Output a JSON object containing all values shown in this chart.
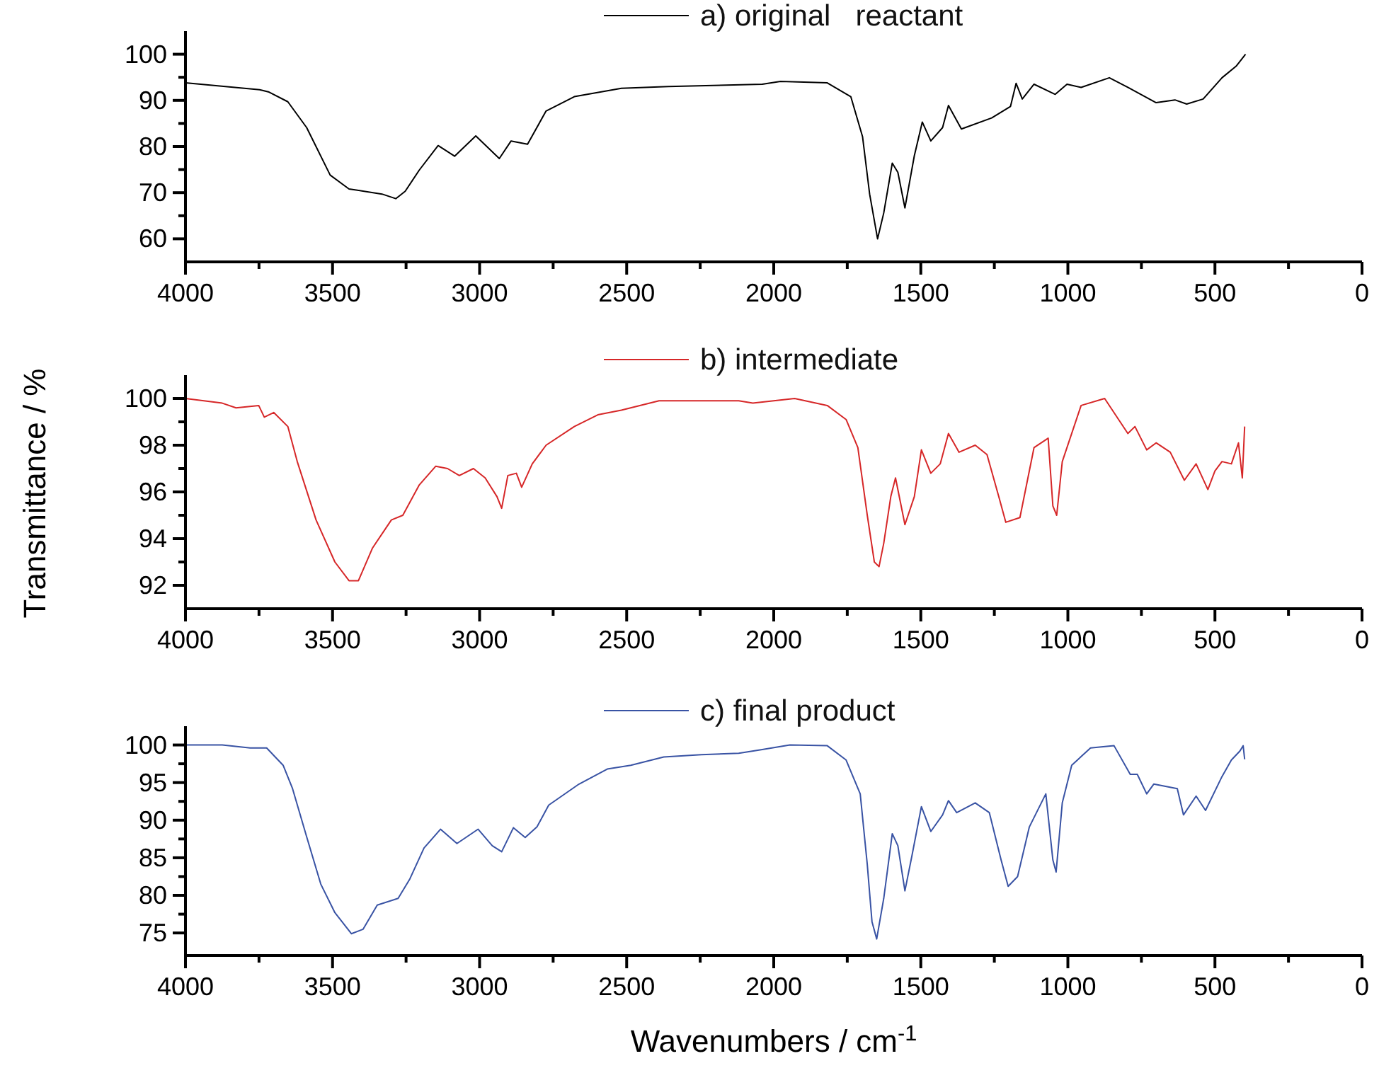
{
  "chart_data": [
    {
      "type": "line",
      "legend": "top",
      "xlim": [
        4000,
        0
      ],
      "ylim": [
        55,
        105
      ],
      "xticks": [
        4000,
        {
          "value": 3750,
          "label": null
        },
        3500,
        {
          "value": 3250,
          "label": null
        },
        3000,
        {
          "value": 2750,
          "label": null
        },
        2500,
        {
          "value": 2250,
          "label": null
        },
        2000,
        {
          "value": 1750,
          "label": null
        },
        1500,
        {
          "value": 1250,
          "label": null
        },
        1000,
        {
          "value": 750,
          "label": null
        },
        500,
        {
          "value": 250,
          "label": null
        },
        0
      ],
      "yticks": [
        60,
        {
          "value": 65,
          "label": null
        },
        70,
        {
          "value": 75,
          "label": null
        },
        80,
        {
          "value": 85,
          "label": null
        },
        90,
        {
          "value": 95,
          "label": null
        },
        100
      ],
      "series": [
        {
          "name": "a) original   reactant",
          "color": "#000000",
          "x": [
            4000,
            3748,
            3716,
            3652,
            3588,
            3508,
            3444,
            3332,
            3285,
            3253,
            3205,
            3141,
            3085,
            3013,
            2933,
            2893,
            2837,
            2774,
            2678,
            2518,
            2358,
            2039,
            1977,
            1818,
            1738,
            1698,
            1674,
            1647,
            1626,
            1597,
            1578,
            1554,
            1522,
            1495,
            1466,
            1426,
            1406,
            1362,
            1259,
            1195,
            1176,
            1155,
            1115,
            1043,
            1003,
            955,
            859,
            795,
            700,
            636,
            596,
            540,
            476,
            428,
            396
          ],
          "values": [
            93.8,
            92.3,
            91.8,
            89.7,
            84.1,
            73.8,
            70.8,
            69.7,
            68.7,
            70.3,
            74.9,
            80.2,
            77.9,
            82.3,
            77.4,
            81.2,
            80.5,
            87.7,
            90.8,
            92.6,
            93.0,
            93.5,
            94.1,
            93.8,
            90.8,
            82.1,
            69.7,
            60.0,
            65.6,
            76.4,
            74.4,
            66.7,
            78.0,
            85.3,
            81.2,
            84.1,
            88.9,
            83.8,
            86.2,
            88.7,
            93.7,
            90.3,
            93.5,
            91.3,
            93.5,
            92.8,
            94.9,
            92.8,
            89.5,
            90.1,
            89.2,
            90.3,
            94.9,
            97.4,
            100.0
          ]
        }
      ]
    },
    {
      "type": "line",
      "legend": "top",
      "ylabel": "Transmittance / %",
      "xlim": [
        4000,
        0
      ],
      "ylim": [
        91,
        101
      ],
      "xticks": [
        4000,
        {
          "value": 3750,
          "label": null
        },
        3500,
        {
          "value": 3250,
          "label": null
        },
        3000,
        {
          "value": 2750,
          "label": null
        },
        2500,
        {
          "value": 2250,
          "label": null
        },
        2000,
        {
          "value": 1750,
          "label": null
        },
        1500,
        {
          "value": 1250,
          "label": null
        },
        1000,
        {
          "value": 750,
          "label": null
        },
        500,
        {
          "value": 250,
          "label": null
        },
        0
      ],
      "yticks": [
        92,
        {
          "value": 93,
          "label": null
        },
        94,
        {
          "value": 95,
          "label": null
        },
        96,
        {
          "value": 97,
          "label": null
        },
        98,
        {
          "value": 99,
          "label": null
        },
        100
      ],
      "series": [
        {
          "name": "b) intermediate",
          "color": "#d62728",
          "x": [
            4000,
            3875,
            3828,
            3751,
            3732,
            3700,
            3652,
            3620,
            3556,
            3492,
            3444,
            3412,
            3364,
            3300,
            3261,
            3205,
            3149,
            3109,
            3069,
            3021,
            2981,
            2941,
            2925,
            2904,
            2875,
            2857,
            2821,
            2774,
            2678,
            2598,
            2518,
            2390,
            2119,
            2071,
            1929,
            1818,
            1754,
            1714,
            1682,
            1658,
            1642,
            1626,
            1602,
            1586,
            1570,
            1554,
            1522,
            1498,
            1466,
            1434,
            1406,
            1370,
            1315,
            1275,
            1235,
            1211,
            1163,
            1115,
            1067,
            1051,
            1038,
            1019,
            955,
            875,
            796,
            772,
            732,
            700,
            652,
            604,
            564,
            524,
            500,
            476,
            444,
            420,
            407,
            399
          ],
          "values": [
            100.0,
            99.8,
            99.6,
            99.7,
            99.2,
            99.4,
            98.8,
            97.3,
            94.8,
            93.0,
            92.2,
            92.2,
            93.6,
            94.8,
            95.0,
            96.3,
            97.1,
            97.0,
            96.7,
            97.0,
            96.6,
            95.8,
            95.3,
            96.7,
            96.8,
            96.2,
            97.2,
            98.0,
            98.8,
            99.3,
            99.5,
            99.9,
            99.9,
            99.8,
            100.0,
            99.7,
            99.1,
            97.9,
            95.0,
            93.0,
            92.8,
            93.8,
            95.8,
            96.6,
            95.6,
            94.6,
            95.8,
            97.8,
            96.8,
            97.2,
            98.5,
            97.7,
            98.0,
            97.6,
            95.8,
            94.7,
            94.9,
            97.9,
            98.3,
            95.4,
            95.0,
            97.3,
            99.7,
            100.0,
            98.5,
            98.8,
            97.8,
            98.1,
            97.7,
            96.5,
            97.2,
            96.1,
            96.9,
            97.3,
            97.2,
            98.1,
            96.6,
            98.8
          ]
        }
      ]
    },
    {
      "type": "line",
      "legend": "top",
      "xlabel": "Wavenumbers / cm$^{-1}$",
      "xlim": [
        4000,
        0
      ],
      "ylim": [
        72,
        102.5
      ],
      "xticks": [
        4000,
        {
          "value": 3750,
          "label": null
        },
        3500,
        {
          "value": 3250,
          "label": null
        },
        3000,
        {
          "value": 2750,
          "label": null
        },
        2500,
        {
          "value": 2250,
          "label": null
        },
        2000,
        {
          "value": 1750,
          "label": null
        },
        1500,
        {
          "value": 1250,
          "label": null
        },
        1000,
        {
          "value": 750,
          "label": null
        },
        500,
        {
          "value": 250,
          "label": null
        },
        0
      ],
      "yticks": [
        75,
        {
          "value": 77.5,
          "label": null
        },
        80,
        {
          "value": 82.5,
          "label": null
        },
        85,
        {
          "value": 87.5,
          "label": null
        },
        90,
        {
          "value": 92.5,
          "label": null
        },
        95,
        {
          "value": 97.5,
          "label": null
        },
        100
      ],
      "series": [
        {
          "name": "c) final product",
          "color": "#3953a4",
          "x": [
            4000,
            3875,
            3780,
            3724,
            3668,
            3636,
            3588,
            3540,
            3492,
            3436,
            3396,
            3348,
            3277,
            3237,
            3189,
            3133,
            3077,
            3005,
            2957,
            2925,
            2885,
            2845,
            2805,
            2765,
            2662,
            2566,
            2486,
            2374,
            2246,
            2119,
            2039,
            1945,
            1818,
            1754,
            1706,
            1682,
            1666,
            1650,
            1626,
            1597,
            1578,
            1554,
            1530,
            1498,
            1466,
            1426,
            1406,
            1378,
            1315,
            1267,
            1227,
            1203,
            1171,
            1131,
            1075,
            1051,
            1040,
            1019,
            987,
            923,
            843,
            788,
            764,
            732,
            708,
            628,
            607,
            564,
            532,
            476,
            444,
            415,
            404,
            399
          ],
          "values": [
            100.0,
            100.0,
            99.6,
            99.6,
            97.3,
            94.2,
            87.8,
            81.5,
            77.7,
            74.9,
            75.5,
            78.7,
            79.6,
            82.2,
            86.3,
            88.8,
            86.9,
            88.8,
            86.6,
            85.8,
            89.0,
            87.7,
            89.1,
            92.0,
            94.8,
            96.8,
            97.3,
            98.4,
            98.7,
            98.9,
            99.4,
            100.0,
            99.9,
            98.0,
            93.5,
            84.1,
            76.5,
            74.2,
            79.6,
            88.2,
            86.6,
            80.6,
            85.3,
            91.8,
            88.5,
            90.7,
            92.6,
            91.0,
            92.3,
            91.0,
            84.7,
            81.2,
            82.5,
            89.1,
            93.5,
            84.7,
            83.1,
            92.3,
            97.3,
            99.6,
            99.9,
            96.1,
            96.1,
            93.5,
            94.8,
            94.2,
            90.7,
            93.2,
            91.3,
            95.8,
            98.0,
            99.2,
            99.9,
            98.1
          ]
        }
      ]
    }
  ]
}
